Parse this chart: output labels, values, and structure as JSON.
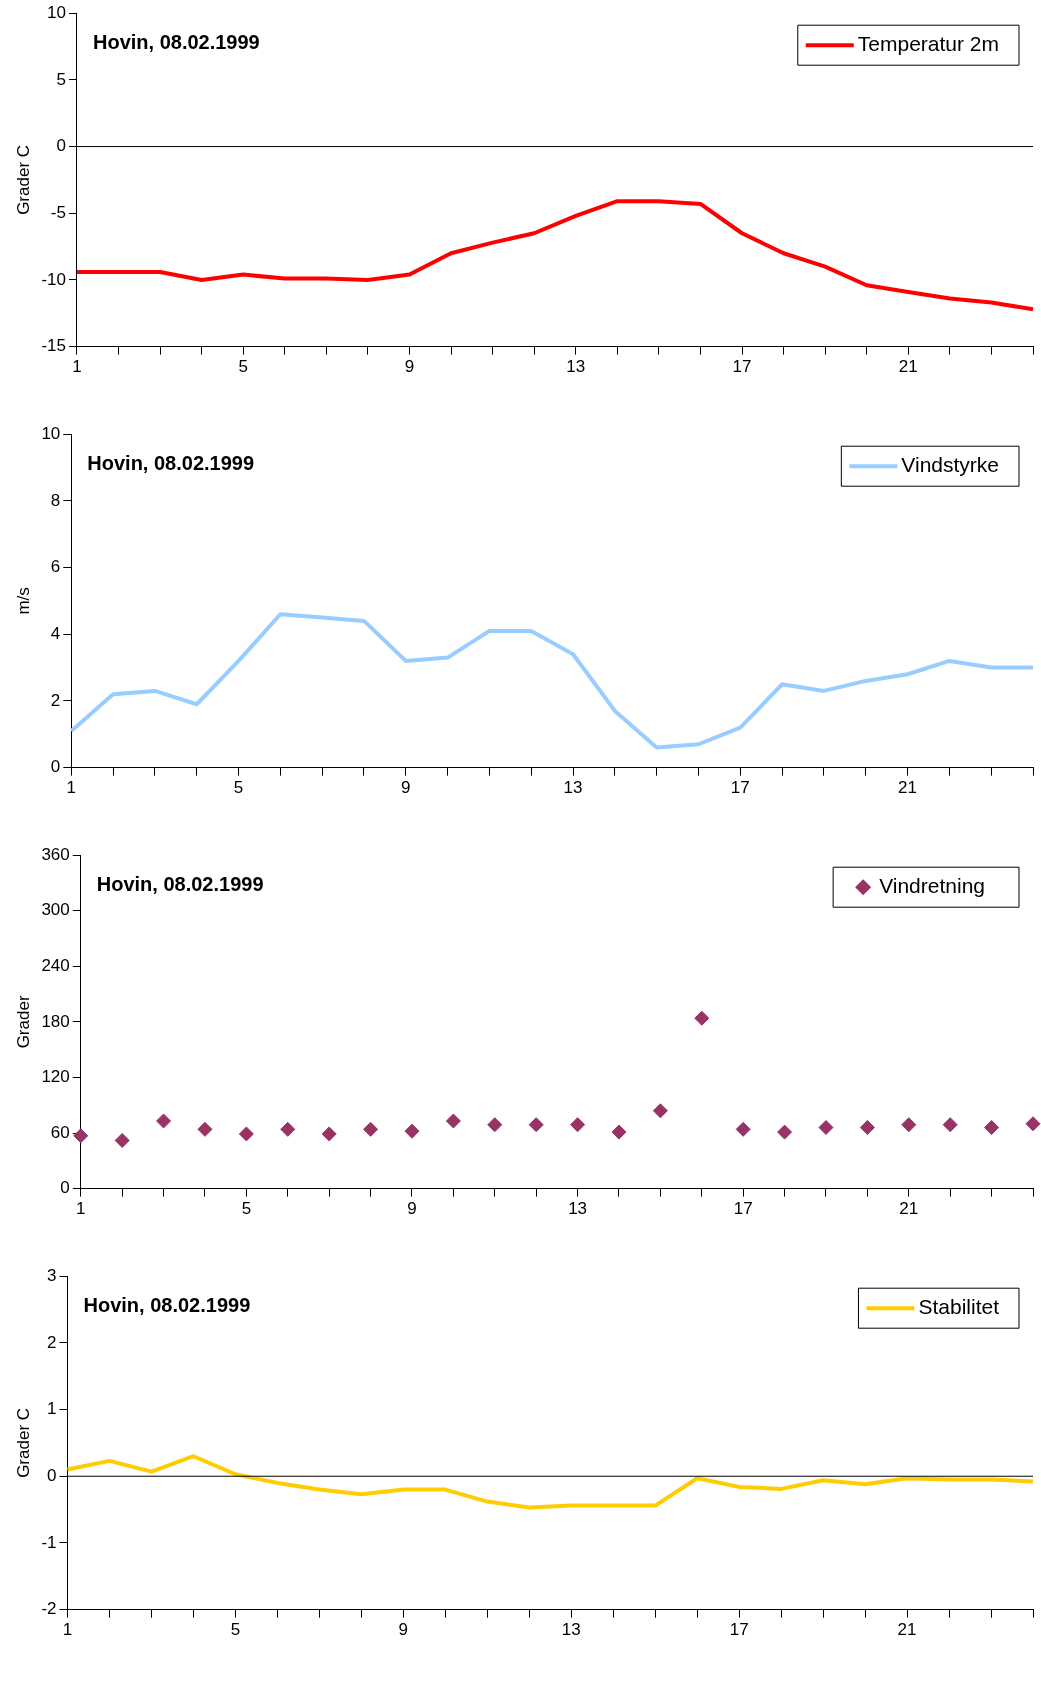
{
  "chart_data": [
    {
      "type": "line",
      "title": "Hovin, 08.02.1999",
      "ylabel": "Grader C",
      "categories": [
        "1",
        null,
        null,
        null,
        "5",
        null,
        null,
        null,
        "9",
        null,
        null,
        null,
        "13",
        null,
        null,
        null,
        "17",
        null,
        null,
        null,
        "21",
        null,
        null,
        null
      ],
      "series": [
        {
          "name": "Temperatur 2m",
          "color": "#ff0000",
          "values": [
            -9.4,
            -9.4,
            -9.4,
            -10,
            -9.6,
            -9.9,
            -9.9,
            -10,
            -9.6,
            -8,
            -7.2,
            -6.5,
            -5.2,
            -4.1,
            -4.1,
            -4.3,
            -6.5,
            -8,
            -9,
            -10.4,
            -10.9,
            -11.4,
            -11.7,
            -12.2
          ]
        }
      ],
      "ylim": [
        -15,
        10
      ],
      "yticks": [
        -15,
        -10,
        -5,
        0,
        5,
        10
      ],
      "ref_lines": [
        {
          "axis": "y",
          "value": 0,
          "color": "#000000"
        }
      ],
      "legend": "top right",
      "grid": false,
      "marker": "none",
      "line_style": "solid"
    },
    {
      "type": "line",
      "title": "Hovin, 08.02.1999",
      "ylabel": "m/s",
      "categories": [
        "1",
        null,
        null,
        null,
        "5",
        null,
        null,
        null,
        "9",
        null,
        null,
        null,
        "13",
        null,
        null,
        null,
        "17",
        null,
        null,
        null,
        "21",
        null,
        null,
        null
      ],
      "series": [
        {
          "name": "Vindstyrke",
          "color": "#99ccff",
          "values": [
            1.1,
            2.2,
            2.3,
            1.9,
            3.2,
            4.6,
            4.5,
            4.4,
            3.2,
            3.3,
            4.1,
            4.1,
            3.4,
            1.7,
            0.6,
            0.7,
            1.2,
            2.5,
            2.3,
            2.6,
            2.8,
            3.2,
            3,
            3
          ]
        }
      ],
      "ylim": [
        0,
        10
      ],
      "yticks": [
        0,
        2,
        4,
        6,
        8,
        10
      ],
      "legend": "top right",
      "grid": false,
      "marker": "none",
      "line_style": "solid"
    },
    {
      "type": "scatter",
      "title": "Hovin, 08.02.1999",
      "ylabel": "Grader",
      "categories": [
        "1",
        null,
        null,
        null,
        "5",
        null,
        null,
        null,
        "9",
        null,
        null,
        null,
        "13",
        null,
        null,
        null,
        "17",
        null,
        null,
        null,
        "21",
        null,
        null,
        null
      ],
      "series": [
        {
          "name": "Vindretning",
          "color": "#993366",
          "values": [
            57,
            52,
            73,
            64,
            59,
            64,
            59,
            64,
            62,
            73,
            69,
            69,
            69,
            61,
            84,
            184,
            64,
            61,
            66,
            66,
            69,
            69,
            66,
            70
          ]
        }
      ],
      "ylim": [
        0,
        360
      ],
      "yticks": [
        0,
        60,
        120,
        180,
        240,
        300,
        360
      ],
      "legend": "top right",
      "grid": false,
      "marker": "diamond"
    },
    {
      "type": "line",
      "title": "Hovin, 08.02.1999",
      "ylabel": "Grader C",
      "categories": [
        "1",
        null,
        null,
        null,
        "5",
        null,
        null,
        null,
        "9",
        null,
        null,
        null,
        "13",
        null,
        null,
        null,
        "17",
        null,
        null,
        null,
        "21",
        null,
        null,
        null
      ],
      "series": [
        {
          "name": "Stabilitet",
          "color": "#ffcc00",
          "values": [
            0.1,
            0.23,
            0.07,
            0.3,
            0.03,
            -0.1,
            -0.2,
            -0.27,
            -0.2,
            -0.2,
            -0.38,
            -0.47,
            -0.44,
            -0.44,
            -0.44,
            -0.03,
            -0.16,
            -0.19,
            -0.06,
            -0.12,
            -0.03,
            -0.05,
            -0.05,
            -0.08
          ]
        }
      ],
      "ylim": [
        -2,
        3
      ],
      "yticks": [
        -2,
        -1,
        0,
        1,
        2,
        3
      ],
      "ref_lines": [
        {
          "axis": "y",
          "value": 0,
          "color": "#000000"
        }
      ],
      "legend": "top right",
      "grid": false,
      "marker": "none",
      "line_style": "solid"
    }
  ]
}
